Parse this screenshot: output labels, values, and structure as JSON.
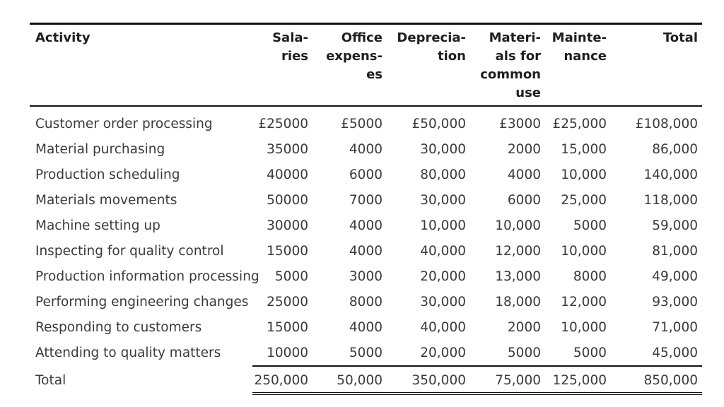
{
  "table": {
    "headers": [
      [
        "Activity"
      ],
      [
        "Sala-",
        "ries"
      ],
      [
        "Office",
        "expens-",
        "es"
      ],
      [
        "Deprecia-",
        "tion"
      ],
      [
        "Materi-",
        "als for",
        "common",
        "use"
      ],
      [
        "Mainte-",
        "nance"
      ],
      [
        "Total"
      ]
    ],
    "rows": [
      [
        "Customer order processing",
        "£25000",
        "£5000",
        "£50,000",
        "£3000",
        "£25,000",
        "£108,000"
      ],
      [
        "Material purchasing",
        "35000",
        "4000",
        "30,000",
        "2000",
        "15,000",
        "86,000"
      ],
      [
        "Production scheduling",
        "40000",
        "6000",
        "80,000",
        "4000",
        "10,000",
        "140,000"
      ],
      [
        "Materials movements",
        "50000",
        "7000",
        "30,000",
        "6000",
        "25,000",
        "118,000"
      ],
      [
        "Machine setting up",
        "30000",
        "4000",
        "10,000",
        "10,000",
        "5000",
        "59,000"
      ],
      [
        "Inspecting for quality control",
        "15000",
        "4000",
        "40,000",
        "12,000",
        "10,000",
        "81,000"
      ],
      [
        "Production information processing",
        "5000",
        "3000",
        "20,000",
        "13,000",
        "8000",
        "49,000"
      ],
      [
        "Performing engineering changes",
        "25000",
        "8000",
        "30,000",
        "18,000",
        "12,000",
        "93,000"
      ],
      [
        "Responding to customers",
        "15000",
        "4000",
        "40,000",
        "2000",
        "10,000",
        "71,000"
      ],
      [
        "Attending to quality matters",
        "10000",
        "5000",
        "20,000",
        "5000",
        "5000",
        "45,000"
      ]
    ],
    "total_row": [
      "Total",
      "250,000",
      "50,000",
      "350,000",
      "75,000",
      "125,000",
      "850,000"
    ]
  }
}
